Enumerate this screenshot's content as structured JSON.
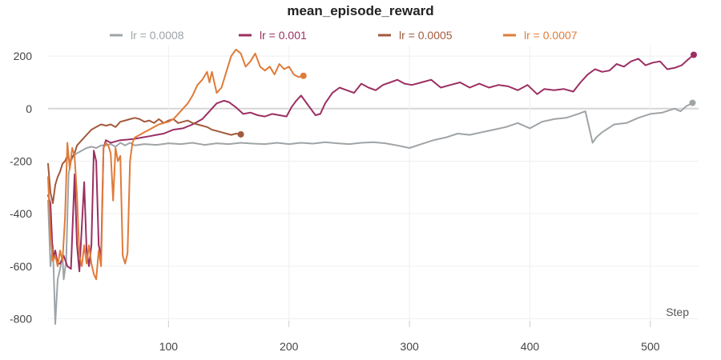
{
  "chart_data": {
    "type": "line",
    "title": "mean_episode_reward",
    "xlabel": "Step",
    "ylabel": "",
    "xlim": [
      0,
      540
    ],
    "ylim": [
      -820,
      240
    ],
    "xticks": [
      100,
      200,
      300,
      400,
      500
    ],
    "yticks": [
      200,
      0,
      -200,
      -400,
      -600,
      -800
    ],
    "grid": true,
    "legend_position": "top",
    "series": [
      {
        "name": "lr = 0.0008",
        "color": "#9fa4a7",
        "end_marker": true,
        "points": [
          [
            0,
            -350
          ],
          [
            2,
            -600
          ],
          [
            4,
            -520
          ],
          [
            6,
            -820
          ],
          [
            8,
            -650
          ],
          [
            10,
            -610
          ],
          [
            12,
            -560
          ],
          [
            13,
            -650
          ],
          [
            15,
            -580
          ],
          [
            17,
            -250
          ],
          [
            19,
            -200
          ],
          [
            21,
            -180
          ],
          [
            24,
            -170
          ],
          [
            28,
            -160
          ],
          [
            32,
            -150
          ],
          [
            36,
            -145
          ],
          [
            40,
            -150
          ],
          [
            44,
            -140
          ],
          [
            48,
            -140
          ],
          [
            52,
            -135
          ],
          [
            56,
            -145
          ],
          [
            60,
            -130
          ],
          [
            64,
            -140
          ],
          [
            68,
            -130
          ],
          [
            72,
            -140
          ],
          [
            80,
            -135
          ],
          [
            90,
            -138
          ],
          [
            100,
            -132
          ],
          [
            110,
            -135
          ],
          [
            120,
            -130
          ],
          [
            130,
            -138
          ],
          [
            140,
            -132
          ],
          [
            150,
            -135
          ],
          [
            160,
            -130
          ],
          [
            170,
            -133
          ],
          [
            180,
            -135
          ],
          [
            190,
            -130
          ],
          [
            200,
            -135
          ],
          [
            210,
            -130
          ],
          [
            220,
            -133
          ],
          [
            230,
            -128
          ],
          [
            240,
            -132
          ],
          [
            250,
            -135
          ],
          [
            260,
            -130
          ],
          [
            270,
            -128
          ],
          [
            280,
            -132
          ],
          [
            290,
            -140
          ],
          [
            300,
            -150
          ],
          [
            310,
            -135
          ],
          [
            320,
            -120
          ],
          [
            330,
            -110
          ],
          [
            340,
            -95
          ],
          [
            350,
            -100
          ],
          [
            360,
            -90
          ],
          [
            370,
            -80
          ],
          [
            380,
            -70
          ],
          [
            390,
            -55
          ],
          [
            400,
            -75
          ],
          [
            410,
            -50
          ],
          [
            420,
            -40
          ],
          [
            430,
            -35
          ],
          [
            440,
            -20
          ],
          [
            446,
            -10
          ],
          [
            450,
            -90
          ],
          [
            452,
            -130
          ],
          [
            455,
            -110
          ],
          [
            460,
            -90
          ],
          [
            470,
            -60
          ],
          [
            480,
            -55
          ],
          [
            490,
            -35
          ],
          [
            500,
            -20
          ],
          [
            510,
            -15
          ],
          [
            520,
            0
          ],
          [
            525,
            -10
          ],
          [
            530,
            10
          ],
          [
            535,
            22
          ]
        ]
      },
      {
        "name": "lr = 0.001",
        "color": "#9b2f62",
        "end_marker": true,
        "points": [
          [
            0,
            -330
          ],
          [
            2,
            -360
          ],
          [
            4,
            -570
          ],
          [
            6,
            -540
          ],
          [
            8,
            -590
          ],
          [
            10,
            -590
          ],
          [
            13,
            -560
          ],
          [
            16,
            -600
          ],
          [
            19,
            -610
          ],
          [
            22,
            -250
          ],
          [
            24,
            -520
          ],
          [
            26,
            -620
          ],
          [
            28,
            -450
          ],
          [
            30,
            -280
          ],
          [
            32,
            -540
          ],
          [
            34,
            -600
          ],
          [
            36,
            -520
          ],
          [
            38,
            -160
          ],
          [
            40,
            -200
          ],
          [
            42,
            -520
          ],
          [
            44,
            -560
          ],
          [
            46,
            -150
          ],
          [
            48,
            -120
          ],
          [
            52,
            -130
          ],
          [
            56,
            -125
          ],
          [
            60,
            -120
          ],
          [
            66,
            -118
          ],
          [
            72,
            -115
          ],
          [
            78,
            -110
          ],
          [
            84,
            -105
          ],
          [
            90,
            -100
          ],
          [
            96,
            -95
          ],
          [
            104,
            -80
          ],
          [
            112,
            -75
          ],
          [
            120,
            -60
          ],
          [
            128,
            -40
          ],
          [
            134,
            -10
          ],
          [
            140,
            20
          ],
          [
            146,
            30
          ],
          [
            150,
            25
          ],
          [
            156,
            5
          ],
          [
            162,
            -20
          ],
          [
            168,
            -15
          ],
          [
            174,
            -25
          ],
          [
            180,
            -30
          ],
          [
            186,
            -20
          ],
          [
            192,
            -25
          ],
          [
            198,
            -30
          ],
          [
            202,
            5
          ],
          [
            206,
            30
          ],
          [
            210,
            50
          ],
          [
            214,
            25
          ],
          [
            218,
            0
          ],
          [
            222,
            -25
          ],
          [
            226,
            -20
          ],
          [
            230,
            20
          ],
          [
            236,
            60
          ],
          [
            242,
            80
          ],
          [
            248,
            70
          ],
          [
            254,
            60
          ],
          [
            260,
            95
          ],
          [
            266,
            80
          ],
          [
            272,
            70
          ],
          [
            278,
            90
          ],
          [
            284,
            100
          ],
          [
            290,
            110
          ],
          [
            296,
            95
          ],
          [
            302,
            90
          ],
          [
            310,
            100
          ],
          [
            318,
            110
          ],
          [
            326,
            80
          ],
          [
            334,
            90
          ],
          [
            342,
            100
          ],
          [
            350,
            80
          ],
          [
            358,
            95
          ],
          [
            366,
            80
          ],
          [
            374,
            90
          ],
          [
            382,
            85
          ],
          [
            390,
            70
          ],
          [
            398,
            90
          ],
          [
            406,
            55
          ],
          [
            412,
            75
          ],
          [
            420,
            70
          ],
          [
            428,
            75
          ],
          [
            436,
            65
          ],
          [
            442,
            100
          ],
          [
            448,
            130
          ],
          [
            454,
            150
          ],
          [
            460,
            140
          ],
          [
            466,
            145
          ],
          [
            472,
            170
          ],
          [
            478,
            160
          ],
          [
            484,
            180
          ],
          [
            490,
            190
          ],
          [
            496,
            165
          ],
          [
            502,
            175
          ],
          [
            508,
            180
          ],
          [
            514,
            150
          ],
          [
            520,
            155
          ],
          [
            526,
            165
          ],
          [
            532,
            190
          ],
          [
            536,
            205
          ]
        ]
      },
      {
        "name": "lr = 0.0005",
        "color": "#a25a3d",
        "end_marker": true,
        "points": [
          [
            0,
            -210
          ],
          [
            2,
            -320
          ],
          [
            4,
            -360
          ],
          [
            6,
            -290
          ],
          [
            8,
            -260
          ],
          [
            10,
            -240
          ],
          [
            12,
            -210
          ],
          [
            14,
            -200
          ],
          [
            16,
            -180
          ],
          [
            18,
            -200
          ],
          [
            20,
            -185
          ],
          [
            22,
            -170
          ],
          [
            24,
            -140
          ],
          [
            28,
            -120
          ],
          [
            32,
            -100
          ],
          [
            36,
            -80
          ],
          [
            40,
            -70
          ],
          [
            44,
            -60
          ],
          [
            48,
            -65
          ],
          [
            52,
            -60
          ],
          [
            56,
            -70
          ],
          [
            60,
            -50
          ],
          [
            64,
            -45
          ],
          [
            68,
            -40
          ],
          [
            72,
            -35
          ],
          [
            76,
            -40
          ],
          [
            80,
            -50
          ],
          [
            84,
            -45
          ],
          [
            88,
            -55
          ],
          [
            92,
            -40
          ],
          [
            96,
            -55
          ],
          [
            100,
            -45
          ],
          [
            104,
            -40
          ],
          [
            108,
            -55
          ],
          [
            112,
            -50
          ],
          [
            116,
            -45
          ],
          [
            120,
            -55
          ],
          [
            124,
            -60
          ],
          [
            128,
            -65
          ],
          [
            132,
            -70
          ],
          [
            136,
            -80
          ],
          [
            140,
            -85
          ],
          [
            144,
            -90
          ],
          [
            148,
            -95
          ],
          [
            152,
            -100
          ],
          [
            156,
            -95
          ],
          [
            160,
            -98
          ]
        ]
      },
      {
        "name": "lr = 0.0007",
        "color": "#e07b39",
        "end_marker": true,
        "points": [
          [
            0,
            -260
          ],
          [
            2,
            -480
          ],
          [
            4,
            -580
          ],
          [
            6,
            -560
          ],
          [
            8,
            -600
          ],
          [
            10,
            -540
          ],
          [
            12,
            -580
          ],
          [
            14,
            -420
          ],
          [
            16,
            -130
          ],
          [
            18,
            -230
          ],
          [
            20,
            -150
          ],
          [
            22,
            -180
          ],
          [
            24,
            -330
          ],
          [
            26,
            -560
          ],
          [
            28,
            -600
          ],
          [
            30,
            -520
          ],
          [
            32,
            -590
          ],
          [
            34,
            -520
          ],
          [
            36,
            -590
          ],
          [
            38,
            -630
          ],
          [
            40,
            -650
          ],
          [
            42,
            -540
          ],
          [
            44,
            -600
          ],
          [
            46,
            -150
          ],
          [
            48,
            -130
          ],
          [
            50,
            -140
          ],
          [
            52,
            -170
          ],
          [
            54,
            -350
          ],
          [
            56,
            -150
          ],
          [
            58,
            -200
          ],
          [
            60,
            -180
          ],
          [
            62,
            -560
          ],
          [
            64,
            -590
          ],
          [
            66,
            -550
          ],
          [
            68,
            -200
          ],
          [
            70,
            -130
          ],
          [
            72,
            -110
          ],
          [
            76,
            -100
          ],
          [
            80,
            -90
          ],
          [
            84,
            -80
          ],
          [
            88,
            -70
          ],
          [
            92,
            -60
          ],
          [
            96,
            -55
          ],
          [
            100,
            -50
          ],
          [
            104,
            -40
          ],
          [
            108,
            -20
          ],
          [
            112,
            0
          ],
          [
            116,
            20
          ],
          [
            120,
            50
          ],
          [
            124,
            90
          ],
          [
            128,
            110
          ],
          [
            132,
            140
          ],
          [
            134,
            100
          ],
          [
            136,
            140
          ],
          [
            140,
            60
          ],
          [
            144,
            80
          ],
          [
            148,
            140
          ],
          [
            152,
            200
          ],
          [
            156,
            225
          ],
          [
            160,
            210
          ],
          [
            164,
            160
          ],
          [
            168,
            180
          ],
          [
            172,
            210
          ],
          [
            176,
            160
          ],
          [
            180,
            145
          ],
          [
            184,
            160
          ],
          [
            188,
            130
          ],
          [
            192,
            170
          ],
          [
            196,
            150
          ],
          [
            200,
            160
          ],
          [
            204,
            130
          ],
          [
            208,
            120
          ],
          [
            212,
            125
          ]
        ]
      }
    ]
  }
}
